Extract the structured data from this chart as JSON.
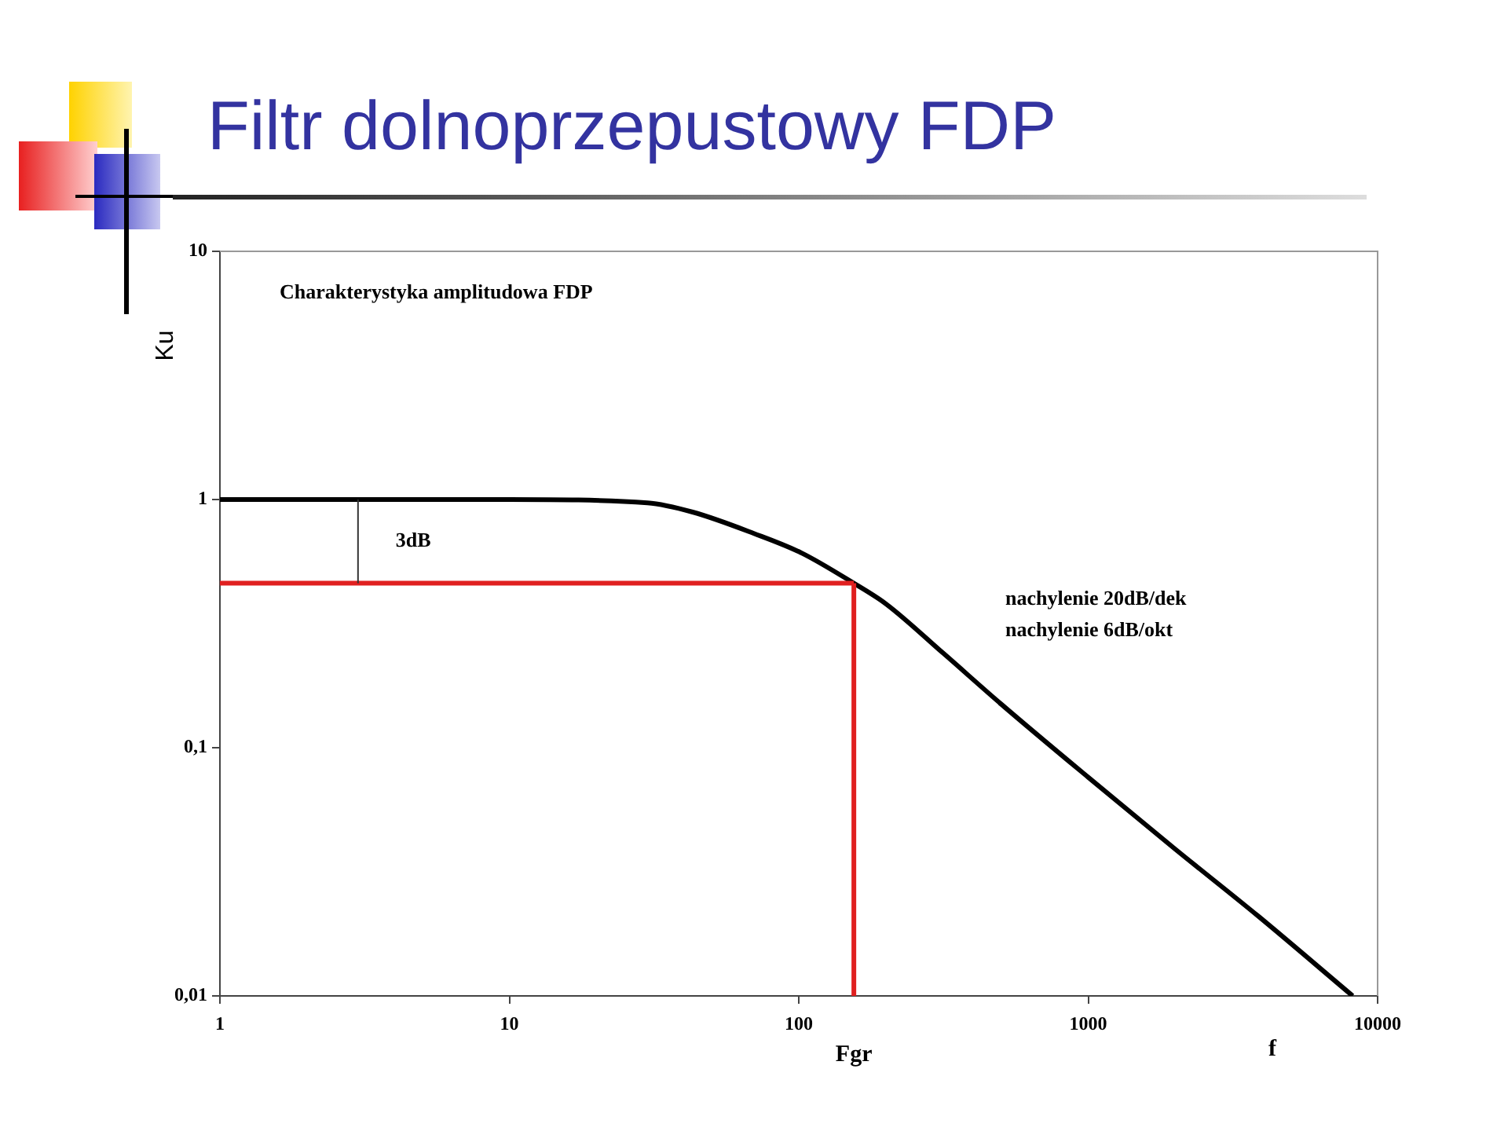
{
  "chart_data": {
    "type": "line",
    "title": "Filtr dolnoprzepustowy FDP",
    "subtitle": "Charakterystyka amplitudowa FDP",
    "xlabel": "f",
    "ylabel": "Ku",
    "log": "xy",
    "grid": false,
    "legend": false,
    "marker": "none",
    "line_style": "solid",
    "x": [
      1,
      10,
      30,
      43,
      70,
      102,
      155,
      200,
      316,
      500,
      1000,
      2000,
      3860,
      8200
    ],
    "series": [
      {
        "color": "#000000",
        "values": [
          1,
          1,
          0.97,
          0.89,
          0.73,
          0.61,
          0.46,
          0.38,
          0.24,
          0.15,
          0.076,
          0.039,
          0.021,
          0.01
        ]
      }
    ],
    "xlim": [
      1,
      10000
    ],
    "xticks": [
      1,
      10,
      100,
      1000,
      10000
    ],
    "ylim": [
      0.01,
      10
    ],
    "yticks": [
      {
        "value": 0.01,
        "label": "0,01"
      },
      {
        "value": 0.1,
        "label": "0,1"
      },
      1,
      10
    ],
    "ref_lines": [
      {
        "axis": "y",
        "value": 0.46,
        "color": "#e02020"
      },
      {
        "axis": "x",
        "value": 155,
        "label": "Fgr",
        "color": "#e02020"
      },
      {
        "axis": "x",
        "value": 3,
        "label": "3dB",
        "color": "#333333"
      }
    ],
    "annotations": [
      "nachylenie 20dB/dek",
      "nachylenie 6dB/okt"
    ]
  }
}
